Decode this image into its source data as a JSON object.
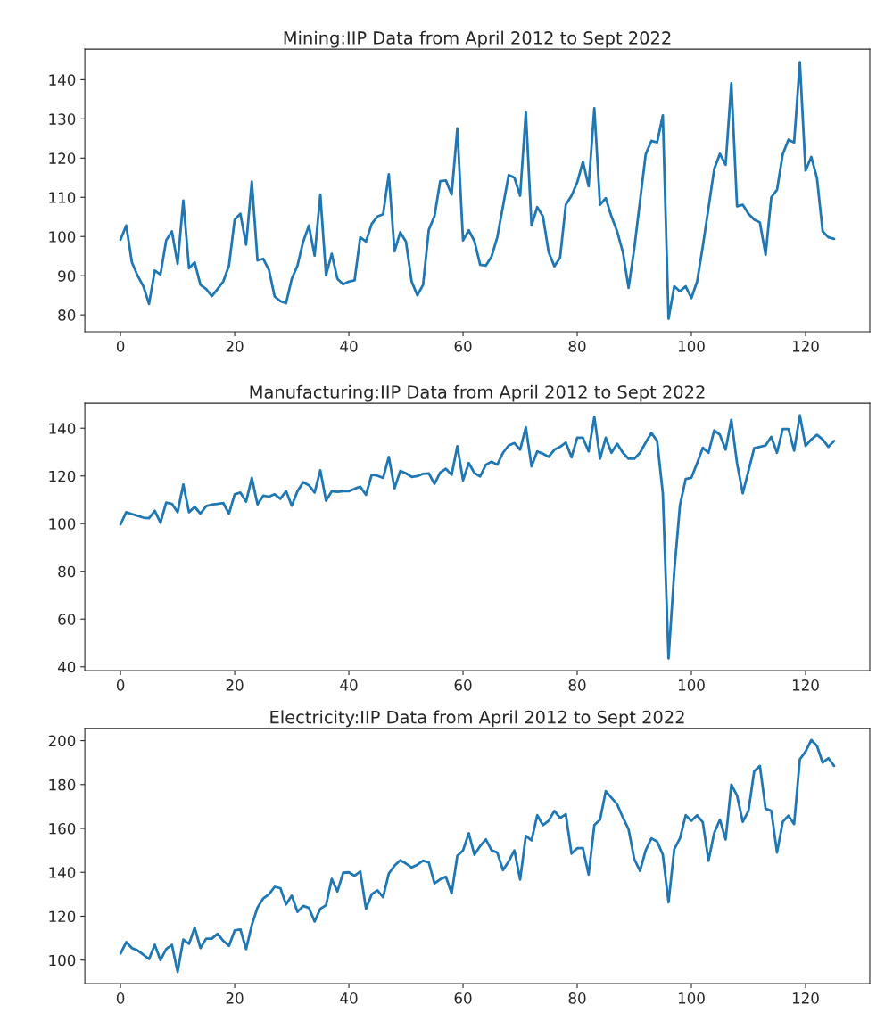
{
  "chart_data": [
    {
      "type": "line",
      "title": "Mining:IIP Data from April 2012 to Sept 2022",
      "grid": false,
      "xlim": [
        -6.25,
        131.25
      ],
      "ylim": [
        75.7,
        147.8
      ],
      "xticks": [
        0,
        20,
        40,
        60,
        80,
        100,
        120
      ],
      "yticks": [
        80,
        90,
        100,
        110,
        120,
        130,
        140
      ],
      "x": [
        0,
        1,
        2,
        3,
        4,
        5,
        6,
        7,
        8,
        9,
        10,
        11,
        12,
        13,
        14,
        15,
        16,
        17,
        18,
        19,
        20,
        21,
        22,
        23,
        24,
        25,
        26,
        27,
        28,
        29,
        30,
        31,
        32,
        33,
        34,
        35,
        36,
        37,
        38,
        39,
        40,
        41,
        42,
        43,
        44,
        45,
        46,
        47,
        48,
        49,
        50,
        51,
        52,
        53,
        54,
        55,
        56,
        57,
        58,
        59,
        60,
        61,
        62,
        63,
        64,
        65,
        66,
        67,
        68,
        69,
        70,
        71,
        72,
        73,
        74,
        75,
        76,
        77,
        78,
        79,
        80,
        81,
        82,
        83,
        84,
        85,
        86,
        87,
        88,
        89,
        90,
        91,
        92,
        93,
        94,
        95,
        96,
        97,
        98,
        99,
        100,
        101,
        102,
        103,
        104,
        105,
        106,
        107,
        108,
        109,
        110,
        111,
        112,
        113,
        114,
        115,
        116,
        117,
        118,
        119,
        120,
        121,
        122,
        123,
        124,
        125
      ],
      "series": [
        {
          "color": "#1f77b4",
          "values": [
            99.2,
            102.8,
            93.4,
            90,
            87.3,
            82.8,
            91.3,
            90.3,
            99,
            101.3,
            93,
            109.2,
            91.9,
            93.4,
            87.7,
            86.6,
            84.8,
            86.6,
            88.5,
            92.6,
            104.3,
            105.8,
            97.9,
            114,
            93.9,
            94.3,
            91.5,
            84.7,
            83.5,
            83,
            89.2,
            92.6,
            98.7,
            102.8,
            95.1,
            110.7,
            90.1,
            95.6,
            89.2,
            87.8,
            88.5,
            88.8,
            99.8,
            98.7,
            103.2,
            105.1,
            105.7,
            115.9,
            96.2,
            101.1,
            98.7,
            88.5,
            85,
            87.7,
            101.7,
            105.2,
            114.1,
            114.3,
            110.7,
            127.6,
            99,
            101.6,
            98.8,
            92.8,
            92.6,
            94.9,
            99.8,
            107.7,
            115.7,
            115,
            110.4,
            131.7,
            102.8,
            107.5,
            105.1,
            96,
            92.4,
            94.6,
            108.1,
            110.4,
            113.8,
            119.1,
            112.8,
            132.7,
            108.1,
            109.8,
            105.1,
            101.3,
            96,
            86.9,
            97,
            109,
            121,
            124.4,
            124,
            130.9,
            79,
            87.3,
            86,
            87.3,
            84.3,
            88.5,
            97.5,
            107.3,
            117.2,
            121.1,
            118.3,
            139.1,
            107.7,
            108.1,
            105.8,
            104.3,
            103.6,
            95.3,
            110,
            111.9,
            121,
            124.7,
            124,
            144.5,
            116.8,
            120.3,
            114.9,
            101.3,
            99.8,
            99.4
          ]
        }
      ]
    },
    {
      "type": "line",
      "title": "Manufacturing:IIP Data from April 2012 to Sept 2022",
      "grid": false,
      "xlim": [
        -6.25,
        131.25
      ],
      "ylim": [
        38.4,
        150.5
      ],
      "xticks": [
        0,
        20,
        40,
        60,
        80,
        100,
        120
      ],
      "yticks": [
        40,
        60,
        80,
        100,
        120,
        140
      ],
      "x": [
        0,
        1,
        2,
        3,
        4,
        5,
        6,
        7,
        8,
        9,
        10,
        11,
        12,
        13,
        14,
        15,
        16,
        17,
        18,
        19,
        20,
        21,
        22,
        23,
        24,
        25,
        26,
        27,
        28,
        29,
        30,
        31,
        32,
        33,
        34,
        35,
        36,
        37,
        38,
        39,
        40,
        41,
        42,
        43,
        44,
        45,
        46,
        47,
        48,
        49,
        50,
        51,
        52,
        53,
        54,
        55,
        56,
        57,
        58,
        59,
        60,
        61,
        62,
        63,
        64,
        65,
        66,
        67,
        68,
        69,
        70,
        71,
        72,
        73,
        74,
        75,
        76,
        77,
        78,
        79,
        80,
        81,
        82,
        83,
        84,
        85,
        86,
        87,
        88,
        89,
        90,
        91,
        92,
        93,
        94,
        95,
        96,
        97,
        98,
        99,
        100,
        101,
        102,
        103,
        104,
        105,
        106,
        107,
        108,
        109,
        110,
        111,
        112,
        113,
        114,
        115,
        116,
        117,
        118,
        119,
        120,
        121,
        122,
        123,
        124,
        125
      ],
      "series": [
        {
          "color": "#1f77b4",
          "values": [
            99.7,
            104.8,
            104,
            103.3,
            102.5,
            102.3,
            105.4,
            100.4,
            108.8,
            108.3,
            104.8,
            116.4,
            104.8,
            107,
            104.2,
            107.3,
            108,
            108.3,
            108.6,
            104.2,
            112.3,
            113,
            109.2,
            119.2,
            108,
            111.7,
            111.3,
            112.3,
            110.4,
            113.6,
            107.5,
            113.6,
            117.4,
            116.1,
            113,
            122.4,
            109.6,
            113.6,
            113.3,
            113.6,
            113.6,
            114.6,
            115.5,
            112.1,
            120.5,
            120.1,
            119.2,
            128,
            114.8,
            122.1,
            121.1,
            119.6,
            119.9,
            120.9,
            121.1,
            116.7,
            121.4,
            123,
            120.5,
            132.5,
            118.2,
            125.4,
            121.2,
            119.8,
            124.7,
            126,
            124.7,
            129.7,
            132.8,
            133.8,
            131,
            140.4,
            124,
            130.3,
            129.3,
            128,
            131,
            132.2,
            134,
            127.8,
            136,
            136,
            130.3,
            144.8,
            127.2,
            136,
            129.7,
            133.5,
            129.7,
            127.2,
            127.2,
            129.7,
            134,
            138,
            134.7,
            112.7,
            43.5,
            80,
            107.7,
            118.7,
            119.2,
            125.3,
            131.8,
            129.7,
            139.1,
            137.2,
            131,
            143.5,
            125.3,
            112.7,
            122.1,
            131.6,
            132.2,
            132.8,
            136.4,
            129.7,
            139.7,
            139.7,
            130.6,
            145.4,
            132.6,
            135.3,
            137.2,
            135.3,
            132.2,
            134.7
          ]
        }
      ]
    },
    {
      "type": "line",
      "title": "Electricity:IIP Data from April 2012 to Sept 2022",
      "grid": false,
      "xlim": [
        -6.25,
        131.25
      ],
      "ylim": [
        89.3,
        205.6
      ],
      "xticks": [
        0,
        20,
        40,
        60,
        80,
        100,
        120
      ],
      "yticks": [
        100,
        120,
        140,
        160,
        180,
        200
      ],
      "x": [
        0,
        1,
        2,
        3,
        4,
        5,
        6,
        7,
        8,
        9,
        10,
        11,
        12,
        13,
        14,
        15,
        16,
        17,
        18,
        19,
        20,
        21,
        22,
        23,
        24,
        25,
        26,
        27,
        28,
        29,
        30,
        31,
        32,
        33,
        34,
        35,
        36,
        37,
        38,
        39,
        40,
        41,
        42,
        43,
        44,
        45,
        46,
        47,
        48,
        49,
        50,
        51,
        52,
        53,
        54,
        55,
        56,
        57,
        58,
        59,
        60,
        61,
        62,
        63,
        64,
        65,
        66,
        67,
        68,
        69,
        70,
        71,
        72,
        73,
        74,
        75,
        76,
        77,
        78,
        79,
        80,
        81,
        82,
        83,
        84,
        85,
        86,
        87,
        88,
        89,
        90,
        91,
        92,
        93,
        94,
        95,
        96,
        97,
        98,
        99,
        100,
        101,
        102,
        103,
        104,
        105,
        106,
        107,
        108,
        109,
        110,
        111,
        112,
        113,
        114,
        115,
        116,
        117,
        118,
        119,
        120,
        121,
        122,
        123,
        124,
        125
      ],
      "series": [
        {
          "color": "#1f77b4",
          "values": [
            103,
            108.2,
            105.5,
            104.4,
            102.5,
            100.5,
            107,
            100,
            105,
            107,
            94.6,
            109.4,
            107.4,
            114.8,
            105.5,
            109.8,
            109.8,
            112,
            108.8,
            106.5,
            113.5,
            114,
            105,
            116,
            124,
            128.1,
            130,
            133.4,
            132.8,
            125.4,
            129.4,
            122,
            124.7,
            123.8,
            117.6,
            123.4,
            125,
            137,
            131.3,
            139.8,
            140,
            138.4,
            140.4,
            123.4,
            130,
            131.8,
            128.7,
            139.5,
            143,
            145.5,
            144,
            142.2,
            143.5,
            145.3,
            144.5,
            135,
            136.8,
            138,
            130.4,
            147.5,
            150,
            157.8,
            148,
            152,
            155,
            150,
            149,
            141,
            145,
            150,
            136.7,
            156.6,
            154.6,
            166,
            161.5,
            163.5,
            168,
            164.7,
            166.5,
            148.5,
            151,
            151,
            139,
            161.5,
            164,
            177,
            174,
            171,
            165,
            159.6,
            146,
            140.7,
            150,
            155.5,
            154,
            148,
            126.4,
            150.5,
            155.5,
            166,
            163.5,
            166,
            162.8,
            145.3,
            158,
            164,
            155,
            180,
            175,
            163,
            168,
            186,
            188.5,
            169,
            168,
            149,
            163,
            165.8,
            162,
            191.5,
            195,
            200.3,
            197.6,
            190,
            192,
            188.5
          ]
        }
      ]
    }
  ]
}
